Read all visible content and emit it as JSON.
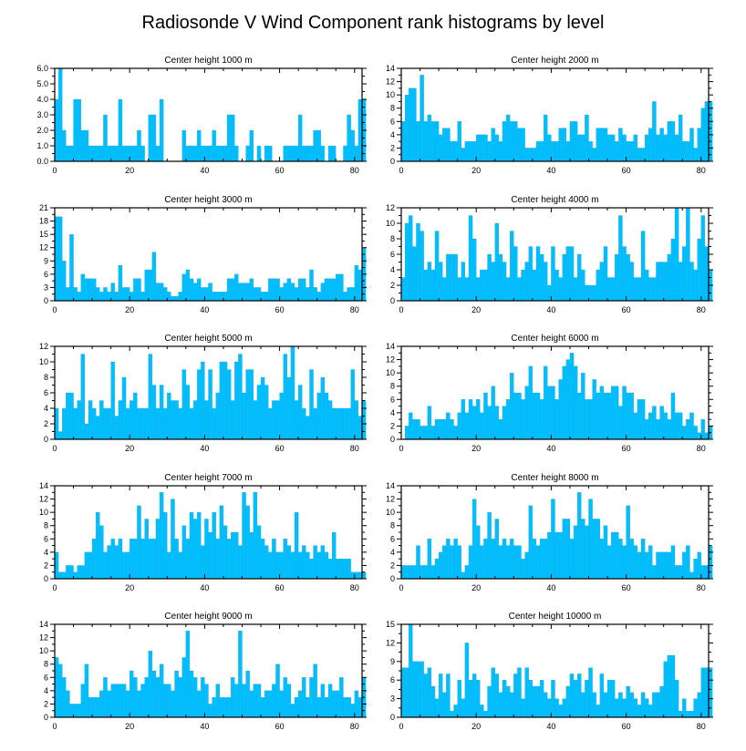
{
  "colors": {
    "bar": "#00bfff",
    "axis": "#000000",
    "background": "#ffffff"
  },
  "chart_data": {
    "type": "bar",
    "title": "Radiosonde V Wind Component rank histograms by level",
    "xlim": [
      0,
      82
    ],
    "xticks": [
      0,
      20,
      40,
      60,
      80
    ],
    "panels": [
      {
        "title": "Center height 1000 m",
        "ylim": [
          0,
          6
        ],
        "yticks": [
          "0.0",
          "1.0",
          "2.0",
          "3.0",
          "4.0",
          "5.0",
          "6.0"
        ],
        "ytick_values": [
          0,
          1,
          2,
          3,
          4,
          5,
          6
        ],
        "values": [
          4,
          6,
          2,
          1,
          1,
          4,
          4,
          2,
          2,
          1,
          1,
          1,
          1,
          3,
          1,
          1,
          1,
          4,
          1,
          1,
          1,
          1,
          2,
          1,
          0,
          3,
          3,
          1,
          4,
          0,
          0,
          0,
          0,
          0,
          2,
          1,
          1,
          1,
          2,
          1,
          1,
          1,
          2,
          1,
          1,
          1,
          3,
          3,
          1,
          0,
          0,
          1,
          2,
          0,
          1,
          0,
          1,
          1,
          0,
          0,
          0,
          1,
          1,
          1,
          1,
          3,
          1,
          1,
          1,
          2,
          2,
          1,
          0,
          1,
          1,
          0,
          0,
          1,
          3,
          2,
          1,
          4,
          4
        ]
      },
      {
        "title": "Center height 2000 m",
        "ylim": [
          0,
          14
        ],
        "yticks": [
          "0",
          "2",
          "4",
          "6",
          "8",
          "10",
          "12",
          "14"
        ],
        "ytick_values": [
          0,
          2,
          4,
          6,
          8,
          10,
          12,
          14
        ],
        "values": [
          6,
          10,
          11,
          11,
          6,
          13,
          6,
          7,
          6,
          6,
          4,
          5,
          5,
          3,
          3,
          6,
          2,
          3,
          3,
          3,
          4,
          4,
          4,
          3,
          5,
          4,
          3,
          6,
          7,
          6,
          6,
          5,
          5,
          2,
          2,
          2,
          3,
          3,
          7,
          4,
          3,
          3,
          5,
          5,
          3,
          6,
          6,
          4,
          4,
          7,
          3,
          2,
          5,
          5,
          5,
          4,
          4,
          3,
          5,
          4,
          3,
          3,
          4,
          2,
          2,
          4,
          5,
          9,
          4,
          5,
          4,
          6,
          6,
          4,
          7,
          3,
          3,
          5,
          2,
          5,
          8,
          9,
          9
        ]
      },
      {
        "title": "Center height 3000 m",
        "ylim": [
          0,
          21
        ],
        "yticks": [
          "0",
          "3",
          "6",
          "9",
          "12",
          "15",
          "18",
          "21"
        ],
        "ytick_values": [
          0,
          3,
          6,
          9,
          12,
          15,
          18,
          21
        ],
        "values": [
          19,
          19,
          9,
          3,
          15,
          3,
          2,
          6,
          5,
          5,
          5,
          3,
          2,
          3,
          2,
          4,
          2,
          8,
          3,
          3,
          2,
          5,
          5,
          2,
          7,
          7,
          11,
          4,
          4,
          3,
          2,
          1,
          1,
          2,
          6,
          7,
          5,
          4,
          5,
          3,
          3,
          4,
          2,
          2,
          2,
          2,
          5,
          5,
          6,
          4,
          4,
          4,
          5,
          3,
          3,
          2,
          2,
          5,
          5,
          5,
          3,
          4,
          5,
          4,
          3,
          5,
          5,
          3,
          7,
          3,
          2,
          4,
          5,
          5,
          5,
          6,
          6,
          2,
          3,
          3,
          8,
          7,
          12
        ]
      },
      {
        "title": "Center height 4000 m",
        "ylim": [
          0,
          12
        ],
        "yticks": [
          "0",
          "2",
          "4",
          "6",
          "8",
          "10",
          "12"
        ],
        "ytick_values": [
          0,
          2,
          4,
          6,
          8,
          10,
          12
        ],
        "values": [
          3,
          10,
          11,
          7,
          10,
          9,
          4,
          5,
          4,
          9,
          5,
          3,
          6,
          6,
          6,
          3,
          5,
          3,
          11,
          8,
          3,
          4,
          4,
          6,
          5,
          10,
          6,
          5,
          3,
          9,
          7,
          3,
          4,
          5,
          7,
          4,
          7,
          6,
          5,
          2,
          7,
          4,
          3,
          6,
          7,
          7,
          3,
          6,
          4,
          2,
          2,
          2,
          4,
          5,
          7,
          3,
          3,
          6,
          11,
          7,
          6,
          5,
          3,
          3,
          9,
          4,
          3,
          3,
          5,
          5,
          5,
          6,
          8,
          12,
          5,
          7,
          12,
          5,
          4,
          8,
          11,
          7,
          4
        ]
      },
      {
        "title": "Center height 5000 m",
        "ylim": [
          0,
          12
        ],
        "yticks": [
          "0",
          "2",
          "4",
          "6",
          "8",
          "10",
          "12"
        ],
        "ytick_values": [
          0,
          2,
          4,
          6,
          8,
          10,
          12
        ],
        "values": [
          4,
          1,
          4,
          6,
          6,
          4,
          5,
          11,
          2,
          5,
          4,
          3,
          5,
          4,
          4,
          10,
          3,
          5,
          8,
          4,
          5,
          6,
          4,
          4,
          4,
          11,
          7,
          4,
          7,
          4,
          6,
          5,
          5,
          4,
          9,
          7,
          4,
          5,
          9,
          10,
          5,
          9,
          4,
          6,
          10,
          10,
          9,
          5,
          10,
          11,
          6,
          9,
          9,
          5,
          7,
          8,
          7,
          4,
          5,
          5,
          6,
          11,
          8,
          12,
          5,
          7,
          4,
          3,
          9,
          4,
          6,
          8,
          6,
          5,
          4,
          4,
          4,
          4,
          4,
          9,
          5,
          3,
          5
        ]
      },
      {
        "title": "Center height 6000 m",
        "ylim": [
          0,
          14
        ],
        "yticks": [
          "0",
          "2",
          "4",
          "6",
          "8",
          "10",
          "12",
          "14"
        ],
        "ytick_values": [
          0,
          2,
          4,
          6,
          8,
          10,
          12,
          14
        ],
        "values": [
          0,
          2,
          4,
          3,
          3,
          2,
          2,
          5,
          2,
          3,
          3,
          3,
          4,
          3,
          2,
          4,
          6,
          4,
          6,
          5,
          6,
          4,
          7,
          5,
          8,
          5,
          3,
          5,
          6,
          10,
          7,
          7,
          6,
          8,
          11,
          7,
          7,
          6,
          11,
          8,
          8,
          6,
          9,
          11,
          12,
          13,
          11,
          7,
          10,
          6,
          6,
          9,
          7,
          8,
          7,
          7,
          8,
          8,
          5,
          8,
          7,
          7,
          4,
          6,
          6,
          3,
          4,
          5,
          3,
          5,
          4,
          3,
          7,
          4,
          4,
          2,
          3,
          4,
          2,
          1,
          3,
          1,
          2
        ]
      },
      {
        "title": "Center height 7000 m",
        "ylim": [
          0,
          14
        ],
        "yticks": [
          "0",
          "2",
          "4",
          "6",
          "8",
          "10",
          "12",
          "14"
        ],
        "ytick_values": [
          0,
          2,
          4,
          6,
          8,
          10,
          12,
          14
        ],
        "values": [
          4,
          1,
          1,
          2,
          2,
          1,
          2,
          2,
          4,
          4,
          6,
          10,
          8,
          4,
          5,
          6,
          5,
          6,
          4,
          4,
          6,
          6,
          11,
          6,
          9,
          6,
          6,
          9,
          13,
          10,
          4,
          12,
          6,
          4,
          8,
          6,
          10,
          9,
          10,
          5,
          9,
          7,
          10,
          6,
          11,
          8,
          6,
          7,
          7,
          5,
          13,
          11,
          7,
          13,
          8,
          6,
          5,
          4,
          6,
          4,
          4,
          6,
          5,
          4,
          10,
          4,
          5,
          4,
          3,
          5,
          4,
          5,
          4,
          3,
          7,
          3,
          3,
          3,
          3,
          1,
          1,
          1,
          1
        ]
      },
      {
        "title": "Center height 8000 m",
        "ylim": [
          0,
          14
        ],
        "yticks": [
          "0",
          "2",
          "4",
          "6",
          "8",
          "10",
          "12",
          "14"
        ],
        "ytick_values": [
          0,
          2,
          4,
          6,
          8,
          10,
          12,
          14
        ],
        "values": [
          2,
          2,
          2,
          2,
          5,
          2,
          2,
          6,
          2,
          3,
          4,
          5,
          6,
          5,
          6,
          5,
          1,
          2,
          5,
          12,
          8,
          5,
          6,
          10,
          6,
          9,
          5,
          6,
          5,
          6,
          5,
          5,
          3,
          4,
          11,
          6,
          5,
          6,
          6,
          7,
          12,
          7,
          7,
          9,
          9,
          6,
          8,
          13,
          9,
          8,
          12,
          9,
          9,
          6,
          8,
          5,
          7,
          7,
          6,
          5,
          11,
          6,
          5,
          4,
          6,
          4,
          5,
          2,
          4,
          4,
          4,
          4,
          5,
          2,
          2,
          4,
          5,
          1,
          3,
          4,
          2,
          2,
          5
        ]
      },
      {
        "title": "Center height 9000 m",
        "ylim": [
          0,
          14
        ],
        "yticks": [
          "0",
          "2",
          "4",
          "6",
          "8",
          "10",
          "12",
          "14"
        ],
        "ytick_values": [
          0,
          2,
          4,
          6,
          8,
          10,
          12,
          14
        ],
        "values": [
          9,
          8,
          6,
          4,
          2,
          2,
          2,
          5,
          8,
          3,
          3,
          3,
          4,
          6,
          4,
          5,
          5,
          5,
          5,
          4,
          7,
          6,
          4,
          5,
          6,
          10,
          7,
          6,
          8,
          5,
          5,
          4,
          7,
          6,
          9,
          13,
          7,
          6,
          4,
          6,
          5,
          2,
          3,
          5,
          3,
          3,
          3,
          6,
          5,
          13,
          5,
          7,
          4,
          5,
          5,
          3,
          4,
          4,
          5,
          8,
          4,
          6,
          5,
          2,
          3,
          4,
          6,
          3,
          6,
          8,
          3,
          5,
          3,
          5,
          4,
          4,
          6,
          3,
          3,
          2,
          4,
          3,
          6
        ]
      },
      {
        "title": "Center height 10000 m",
        "ylim": [
          0,
          15
        ],
        "yticks": [
          "0",
          "3",
          "6",
          "9",
          "12",
          "15"
        ],
        "ytick_values": [
          0,
          3,
          6,
          9,
          12,
          15
        ],
        "values": [
          8,
          8,
          15,
          9,
          9,
          9,
          7,
          8,
          5,
          3,
          7,
          4,
          7,
          1,
          2,
          6,
          3,
          12,
          6,
          7,
          6,
          2,
          1,
          5,
          8,
          7,
          4,
          6,
          5,
          4,
          7,
          8,
          3,
          8,
          6,
          5,
          5,
          6,
          4,
          3,
          6,
          3,
          2,
          3,
          5,
          7,
          6,
          7,
          4,
          6,
          8,
          4,
          2,
          7,
          4,
          6,
          6,
          3,
          4,
          3,
          5,
          4,
          3,
          2,
          4,
          3,
          2,
          4,
          4,
          5,
          9,
          10,
          10,
          6,
          1,
          3,
          1,
          1,
          3,
          4,
          8,
          8,
          8
        ]
      }
    ]
  }
}
